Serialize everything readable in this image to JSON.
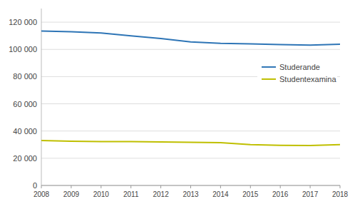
{
  "chart_data": {
    "type": "line",
    "x": [
      2008,
      2009,
      2010,
      2011,
      2012,
      2013,
      2014,
      2015,
      2016,
      2017,
      2018
    ],
    "series": [
      {
        "name": "Studerande",
        "color": "#2E75B6",
        "values": [
          113500,
          113000,
          112000,
          110000,
          108000,
          105500,
          104500,
          104000,
          103500,
          103200,
          103800
        ]
      },
      {
        "name": "Studentexamina",
        "color": "#BFBF00",
        "values": [
          33000,
          32500,
          32300,
          32200,
          32000,
          31700,
          31500,
          30000,
          29500,
          29300,
          30000
        ]
      }
    ],
    "xlim": [
      2008,
      2018
    ],
    "xticks": [
      2008,
      2009,
      2010,
      2011,
      2012,
      2013,
      2014,
      2015,
      2016,
      2017,
      2018
    ],
    "ylim": [
      0,
      130000
    ],
    "yticks": [
      0,
      {
        "value": 20000,
        "label": "20 000"
      },
      {
        "value": 40000,
        "label": "40 000"
      },
      {
        "value": 60000,
        "label": "60 000"
      },
      {
        "value": 80000,
        "label": "80 000"
      },
      {
        "value": 100000,
        "label": "100 000"
      },
      {
        "value": 120000,
        "label": "120 000"
      }
    ],
    "grid": true,
    "legend": "right"
  }
}
